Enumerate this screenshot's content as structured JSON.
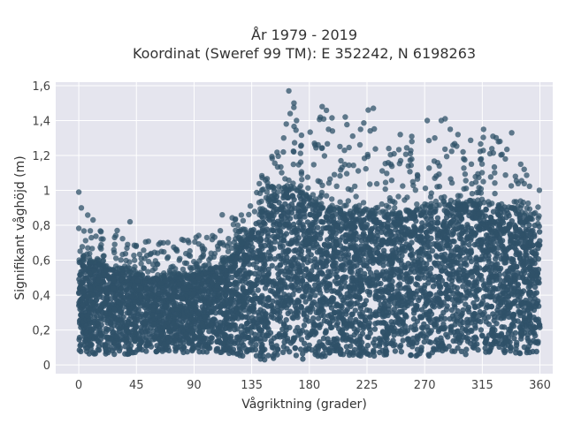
{
  "chart_data": {
    "type": "scatter",
    "title_line1": "År 1979 - 2019",
    "title_line2": "Koordinat (Sweref 99 TM): E 352242, N 6198263",
    "xlabel": "Vågriktning (grader)",
    "ylabel": "Signifikant våghöjd (m)",
    "xlim": [
      -18,
      370
    ],
    "ylim": [
      -0.05,
      1.62
    ],
    "xticks": [
      0,
      45,
      90,
      135,
      180,
      225,
      270,
      315,
      360
    ],
    "xtick_labels": [
      "0",
      "45",
      "90",
      "135",
      "180",
      "225",
      "270",
      "315",
      "360"
    ],
    "yticks": [
      0,
      0.2,
      0.4,
      0.6,
      0.8,
      1.0,
      1.2,
      1.4,
      1.6
    ],
    "ytick_labels": [
      "0",
      "0,2",
      "0,4",
      "0,6",
      "0,8",
      "1",
      "1,2",
      "1,4",
      "1,6"
    ],
    "grid": true,
    "marker_color": "#2f5168",
    "bg_color": "#e5e5ee",
    "envelope": {
      "x": [
        0,
        15,
        30,
        45,
        60,
        75,
        90,
        105,
        120,
        128,
        135,
        150,
        160,
        165,
        175,
        190,
        210,
        225,
        240,
        255,
        270,
        285,
        300,
        315,
        330,
        345,
        360
      ],
      "y_min": [
        0.06,
        0.06,
        0.06,
        0.06,
        0.07,
        0.07,
        0.07,
        0.07,
        0.06,
        0.05,
        0.03,
        0.02,
        0.02,
        0.02,
        0.03,
        0.04,
        0.05,
        0.05,
        0.05,
        0.05,
        0.05,
        0.05,
        0.06,
        0.06,
        0.06,
        0.06,
        0.07
      ],
      "y_dense_max": [
        0.6,
        0.58,
        0.55,
        0.52,
        0.5,
        0.5,
        0.52,
        0.55,
        0.62,
        0.7,
        0.8,
        0.95,
        1.02,
        1.02,
        0.98,
        0.9,
        0.88,
        0.87,
        0.86,
        0.87,
        0.9,
        0.92,
        0.92,
        0.92,
        0.92,
        0.88,
        0.8
      ],
      "y_sparse_max": [
        0.99,
        0.8,
        0.75,
        0.72,
        0.72,
        0.72,
        0.75,
        0.78,
        0.85,
        0.9,
        0.98,
        1.2,
        1.32,
        1.57,
        1.38,
        1.48,
        1.4,
        1.47,
        1.3,
        1.3,
        1.4,
        1.41,
        1.35,
        1.35,
        1.33,
        1.18,
        1.0
      ]
    },
    "outliers": [
      {
        "x": 0,
        "y": 0.99
      },
      {
        "x": 2,
        "y": 0.9
      },
      {
        "x": 164,
        "y": 1.57
      },
      {
        "x": 168,
        "y": 1.5
      },
      {
        "x": 165,
        "y": 1.44
      },
      {
        "x": 162,
        "y": 1.38
      },
      {
        "x": 160,
        "y": 1.3
      },
      {
        "x": 170,
        "y": 1.4
      },
      {
        "x": 190,
        "y": 1.48
      },
      {
        "x": 195,
        "y": 1.35
      },
      {
        "x": 198,
        "y": 1.34
      },
      {
        "x": 184,
        "y": 1.27
      },
      {
        "x": 226,
        "y": 1.46
      },
      {
        "x": 230,
        "y": 1.47
      },
      {
        "x": 220,
        "y": 1.35
      },
      {
        "x": 272,
        "y": 1.4
      },
      {
        "x": 283,
        "y": 1.4
      },
      {
        "x": 286,
        "y": 1.41
      },
      {
        "x": 290,
        "y": 1.35
      },
      {
        "x": 296,
        "y": 1.32
      },
      {
        "x": 316,
        "y": 1.35
      },
      {
        "x": 338,
        "y": 1.33
      },
      {
        "x": 345,
        "y": 1.15
      },
      {
        "x": 333,
        "y": 1.18
      },
      {
        "x": 260,
        "y": 1.28
      },
      {
        "x": 242,
        "y": 1.24
      },
      {
        "x": 300,
        "y": 1.22
      },
      {
        "x": 28,
        "y": 0.73
      },
      {
        "x": 30,
        "y": 0.77
      },
      {
        "x": 40,
        "y": 0.82
      },
      {
        "x": 100,
        "y": 0.73
      },
      {
        "x": 110,
        "y": 0.7
      },
      {
        "x": 112,
        "y": 0.86
      },
      {
        "x": 208,
        "y": 1.42
      },
      {
        "x": 251,
        "y": 1.32
      },
      {
        "x": 321,
        "y": 1.21
      }
    ]
  }
}
